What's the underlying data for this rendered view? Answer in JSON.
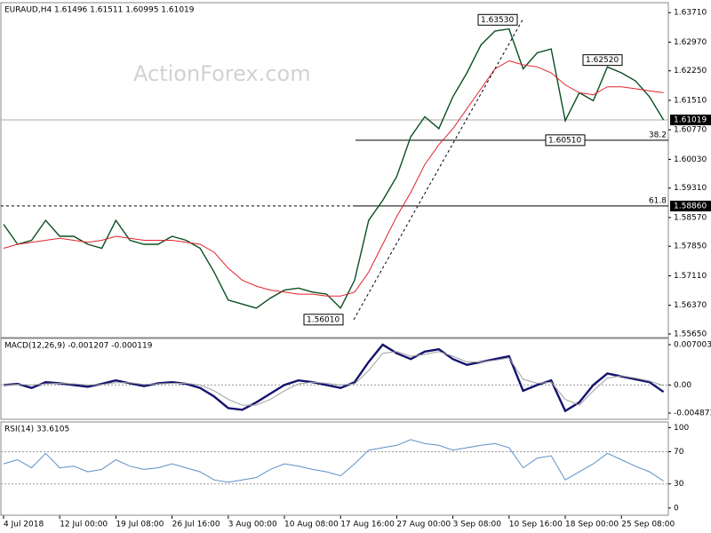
{
  "chart_data": [
    {
      "type": "line",
      "title": "EURAUD,H4  1.61496 1.61511 1.60995 1.61019",
      "watermark": "ActionForex.com",
      "categories": [
        "4 Jul 2018",
        null,
        null,
        null,
        "12 Jul 00:00",
        null,
        null,
        null,
        "19 Jul 08:00",
        null,
        null,
        null,
        "26 Jul 16:00",
        null,
        null,
        null,
        "3 Aug 00:00",
        null,
        null,
        null,
        "10 Aug 08:00",
        null,
        null,
        null,
        "17 Aug 16:00",
        null,
        null,
        null,
        "27 Aug 00:00",
        null,
        null,
        null,
        "3 Sep 08:00",
        null,
        null,
        null,
        "10 Sep 16:00",
        null,
        null,
        null,
        "18 Sep 00:00",
        null,
        null,
        null,
        "25 Sep 08:00",
        null,
        null,
        null
      ],
      "series": [
        {
          "name": "EURAUD",
          "color": "#0b4f22",
          "values": [
            1.584,
            1.579,
            1.58,
            1.585,
            1.581,
            1.581,
            1.579,
            1.578,
            1.585,
            1.58,
            1.579,
            1.579,
            1.581,
            1.58,
            1.578,
            1.572,
            1.565,
            1.564,
            1.563,
            1.5655,
            1.5675,
            1.568,
            1.567,
            1.5665,
            1.563,
            1.57,
            1.585,
            1.59,
            1.596,
            1.606,
            1.611,
            1.608,
            1.616,
            1.622,
            1.629,
            1.6325,
            1.633,
            1.623,
            1.627,
            1.628,
            1.61,
            1.617,
            1.615,
            1.6235,
            1.622,
            1.62,
            1.616,
            1.61019
          ]
        },
        {
          "name": "MA",
          "color": "#e0242b",
          "values": [
            1.578,
            1.579,
            1.5795,
            1.58,
            1.5805,
            1.58,
            1.5795,
            1.58,
            1.581,
            1.5805,
            1.58,
            1.58,
            1.58,
            1.5795,
            1.579,
            1.577,
            1.573,
            1.57,
            1.5685,
            1.5675,
            1.567,
            1.5665,
            1.5665,
            1.566,
            1.566,
            1.567,
            1.572,
            1.579,
            1.586,
            1.592,
            1.599,
            1.604,
            1.608,
            1.613,
            1.618,
            1.623,
            1.625,
            1.624,
            1.6235,
            1.622,
            1.619,
            1.617,
            1.6165,
            1.6185,
            1.6185,
            1.618,
            1.6175,
            1.617
          ]
        }
      ],
      "ylim": [
        1.5556,
        1.6396
      ],
      "yticks": [
        {
          "value": 1.6371,
          "label": "1.63710"
        },
        {
          "value": 1.6297,
          "label": "1.62970"
        },
        {
          "value": 1.6225,
          "label": "1.62250"
        },
        {
          "value": 1.6151,
          "label": "1.61510"
        },
        {
          "value": 1.6077,
          "label": "1.60770"
        },
        {
          "value": 1.6003,
          "label": "1.60030"
        },
        {
          "value": 1.5931,
          "label": "1.59310"
        },
        {
          "value": 1.5857,
          "label": "1.58570"
        },
        {
          "value": 1.5785,
          "label": "1.57850"
        },
        {
          "value": 1.5711,
          "label": "1.57110"
        },
        {
          "value": 1.5637,
          "label": "1.56370"
        },
        {
          "value": 1.5565,
          "label": "1.55650"
        }
      ],
      "annotations": [
        {
          "value": 1.6353,
          "label": "1.63530"
        },
        {
          "value": 1.6252,
          "label": "1.62520"
        },
        {
          "value": 1.6051,
          "label": "1.60510"
        },
        {
          "value": 1.5601,
          "label": "1.56010"
        }
      ],
      "levels": [
        {
          "value": 1.6051,
          "ratio": "38.2"
        },
        {
          "value": 1.5886,
          "ratio": "61.8",
          "price_label": "1.58860"
        }
      ],
      "last_price": 1.61019
    },
    {
      "type": "line",
      "title": "MACD(12,26,9) -0.001207 -0.000119",
      "series": [
        {
          "name": "MACD",
          "color": "#14146e",
          "values": [
            0.0,
            0.0002,
            -0.0005,
            0.0005,
            0.0003,
            0.0,
            -0.0003,
            0.0002,
            0.0008,
            0.0003,
            -0.0002,
            0.0003,
            0.0005,
            0.0002,
            -0.0005,
            -0.002,
            -0.004,
            -0.0043,
            -0.003,
            -0.0015,
            0.0,
            0.0008,
            0.0005,
            0.0,
            -0.0005,
            0.0005,
            0.004,
            0.007,
            0.0055,
            0.0045,
            0.0058,
            0.0062,
            0.0045,
            0.0035,
            0.004,
            0.0045,
            0.005,
            -0.001,
            0.0,
            0.0008,
            -0.0045,
            -0.003,
            0.0,
            0.002,
            0.0015,
            0.001,
            0.0005,
            -0.0012
          ]
        },
        {
          "name": "Signal",
          "color": "#a0a0a0",
          "values": [
            0.0,
            0.0001,
            0.0,
            0.0002,
            0.0003,
            0.0002,
            0.0,
            0.0001,
            0.0004,
            0.0004,
            0.0001,
            0.0002,
            0.0003,
            0.0003,
            0.0,
            -0.001,
            -0.0025,
            -0.0035,
            -0.0035,
            -0.0025,
            -0.001,
            0.0002,
            0.0005,
            0.0003,
            0.0,
            0.0002,
            0.0025,
            0.0055,
            0.0058,
            0.005,
            0.0053,
            0.0058,
            0.005,
            0.004,
            0.004,
            0.0043,
            0.0047,
            0.001,
            0.0003,
            0.0005,
            -0.0025,
            -0.0035,
            -0.001,
            0.0012,
            0.0016,
            0.0012,
            0.0007,
            -0.0001
          ]
        }
      ],
      "ylim": [
        -0.00595,
        0.00808
      ],
      "yticks": [
        0.007003,
        {
          "value": 0,
          "label": "0.00"
        },
        -0.004873
      ]
    },
    {
      "type": "line",
      "title": "RSI(14) 33.6105",
      "series": [
        {
          "name": "RSI",
          "color": "#5a8fc8",
          "values": [
            55,
            60,
            50,
            68,
            50,
            52,
            45,
            48,
            60,
            52,
            48,
            50,
            55,
            50,
            45,
            35,
            32,
            35,
            38,
            48,
            55,
            52,
            48,
            45,
            40,
            55,
            72,
            75,
            78,
            85,
            80,
            78,
            72,
            75,
            78,
            80,
            75,
            50,
            62,
            65,
            35,
            45,
            55,
            68,
            60,
            52,
            45,
            33.6105
          ]
        }
      ],
      "ylim": [
        -9,
        107
      ],
      "yticks": [
        100,
        70,
        30,
        0
      ]
    }
  ]
}
